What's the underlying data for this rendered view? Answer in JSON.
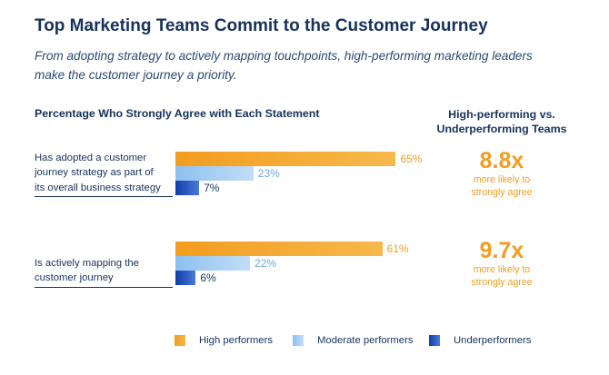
{
  "header": {
    "title": "Top Marketing Teams Commit to the Customer Journey",
    "subtitle_line1": "From adopting strategy to actively mapping touchpoints, high-performing marketing leaders",
    "subtitle_line2": "make the customer journey a priority."
  },
  "comparison_heading_line1": "High-performing vs.",
  "comparison_heading_line2": "Underperforming Teams",
  "colors": {
    "high": "#f29d1f",
    "moderate": "#8cc0f0",
    "under": "#1247b3",
    "text": "#16325c"
  },
  "chart_data": {
    "type": "bar",
    "orientation": "horizontal",
    "title": "Percentage Who Strongly Agree with Each Statement",
    "categories": [
      "Has adopted a customer journey strategy as part of its overall business strategy",
      "Is actively mapping the customer journey"
    ],
    "category_label_lines": [
      [
        "Has adopted a customer",
        "journey strategy as part of",
        "its overall business strategy"
      ],
      [
        "Is actively mapping the",
        "customer journey"
      ]
    ],
    "series": [
      {
        "name": "High performers",
        "values": [
          65,
          61
        ],
        "labels": [
          "65%",
          "61%"
        ]
      },
      {
        "name": "Moderate performers",
        "values": [
          23,
          22
        ],
        "labels": [
          "23%",
          "22%"
        ]
      },
      {
        "name": "Underperformers",
        "values": [
          7,
          6
        ],
        "labels": [
          "7%",
          "6%"
        ]
      }
    ],
    "unit": "%",
    "xlim": [
      0,
      100
    ],
    "grid": false,
    "legend_position": "bottom"
  },
  "comparison": [
    {
      "multiple": "8.8x",
      "desc_line1": "more likely to",
      "desc_line2": "strongly agree"
    },
    {
      "multiple": "9.7x",
      "desc_line1": "more likely to",
      "desc_line2": "strongly agree"
    }
  ]
}
